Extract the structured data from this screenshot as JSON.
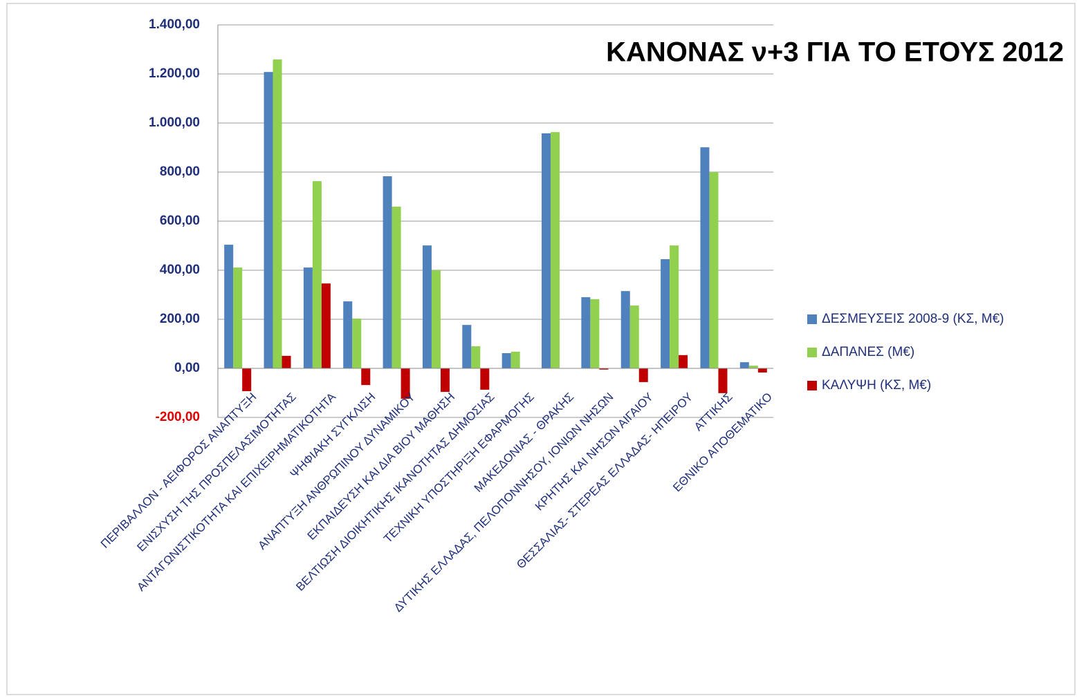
{
  "chart_data": {
    "type": "bar",
    "title": "ΚΑΝΟΝΑΣ ν+3 ΓΙΑ ΤΟ ΕΤΟΥΣ 2012",
    "categories": [
      "ΠΕΡΙΒΑΛΛΟΝ - ΑΕΙΦΟΡΟΣ ΑΝΑΠΤΥΞΗ",
      "ΕΝΙΣΧΥΣΗ ΤΗΣ ΠΡΟΣΠΕΛΑΣΙΜΟΤΗΤΑΣ",
      "ΑΝΤΑΓΩΝΙΣΤΙΚΟΤΗΤΑ ΚΑΙ ΕΠΙΧΕΙΡΗΜΑΤΙΚΟΤΗΤΑ",
      "ΨΗΦΙΑΚΗ  ΣΥΓΚΛΙΣΗ",
      "ΑΝΑΠΤΥΞΗ ΑΝΘΡΩΠΙΝΟΥ ΔΥΝΑΜΙΚΟΥ",
      "ΕΚΠΑΙΔΕΥΣΗ ΚΑΙ ΔΙΑ ΒΙΟΥ ΜΑΘΗΣΗ",
      "ΒΕΛΤΙΩΣΗ ΔΙΟΙΚΗΤΙΚΗΣ ΙΚΑΝΟΤΗΤΑΣ ΔΗΜΟΣΙΑΣ",
      "ΤΕΧΝΙΚΗ ΥΠΟΣΤΗΡΙΞΗ ΕΦΑΡΜΟΓΗΣ",
      "ΜΑΚΕΔΟΝΙΑΣ - ΘΡΑΚΗΣ",
      "ΔΥΤΙΚΗΣ ΕΛΛΑΔΑΣ, ΠΕΛΟΠΟΝΝΗΣΟΥ, ΙΟΝΙΩΝ ΝΗΣΩΝ",
      "ΚΡΗΤΗΣ ΚΑΙ ΝΗΣΩΝ ΑΙΓΑΙΟΥ",
      "ΘΕΣΣΑΛΙΑΣ- ΣΤΕΡΕΑΣ ΕΛΛΑΔΑΣ- ΗΠΕΙΡΟΥ",
      "ΑΤΤΙΚΗΣ",
      "ΕΘΝΙΚΟ ΑΠΟΘΕΜΑΤΙΚΟ"
    ],
    "series": [
      {
        "name": "ΔΕΣΜΕΥΣΕΙΣ 2008-9  (ΚΣ, Μ€)",
        "color": "#4f81bd",
        "values": [
          504,
          1208,
          411,
          273,
          783,
          501,
          177,
          62,
          958,
          290,
          315,
          445,
          901,
          25
        ]
      },
      {
        "name": "ΔΑΠΑΝΕΣ (Μ€)",
        "color": "#92d050",
        "values": [
          411,
          1259,
          763,
          203,
          659,
          400,
          90,
          68,
          963,
          282,
          256,
          501,
          800,
          11
        ]
      },
      {
        "name": "ΚΑΛΥΨΗ (ΚΣ, Μ€)",
        "color": "#c00000",
        "values": [
          -93,
          51,
          346,
          -68,
          -124,
          -96,
          -87,
          0,
          0,
          -5,
          -56,
          54,
          -101,
          -17
        ]
      }
    ],
    "ylim": [
      -200,
      1400
    ],
    "yticks": [
      {
        "value": -200,
        "label": "-200,00"
      },
      {
        "value": 0,
        "label": "0,00"
      },
      {
        "value": 200,
        "label": "200,00"
      },
      {
        "value": 400,
        "label": "400,00"
      },
      {
        "value": 600,
        "label": "600,00"
      },
      {
        "value": 800,
        "label": "800,00"
      },
      {
        "value": 1000,
        "label": "1.000,00"
      },
      {
        "value": 1200,
        "label": "1.200,00"
      },
      {
        "value": 1400,
        "label": "1.400,00"
      }
    ],
    "grid": true,
    "legend": "right"
  }
}
